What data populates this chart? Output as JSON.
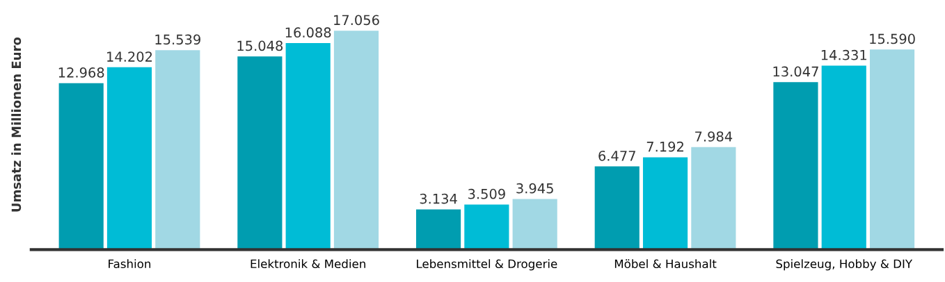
{
  "chart_data": {
    "type": "bar",
    "ylabel": "Umsatz in Millionen Euro",
    "categories": [
      "Fashion",
      "Elektronik & Medien",
      "Lebensmittel & Drogerie",
      "Möbel & Haushalt",
      "Spielzeug, Hobby & DIY"
    ],
    "series": [
      {
        "color": "#009db0",
        "values": [
          12968,
          15048,
          3134,
          6477,
          13047
        ],
        "value_labels": [
          "12.968",
          "15.048",
          "3.134",
          "6.477",
          "13.047"
        ]
      },
      {
        "color": "#00bcd6",
        "values": [
          14202,
          16088,
          3509,
          7192,
          14331
        ],
        "value_labels": [
          "14.202",
          "16.088",
          "3.509",
          "7.192",
          "14.331"
        ]
      },
      {
        "color": "#a1d8e4",
        "values": [
          15539,
          17056,
          3945,
          7984,
          15590
        ],
        "value_labels": [
          "15.539",
          "17.056",
          "3.945",
          "7.984",
          "15.590"
        ]
      }
    ],
    "tick_labels": "x"
  }
}
